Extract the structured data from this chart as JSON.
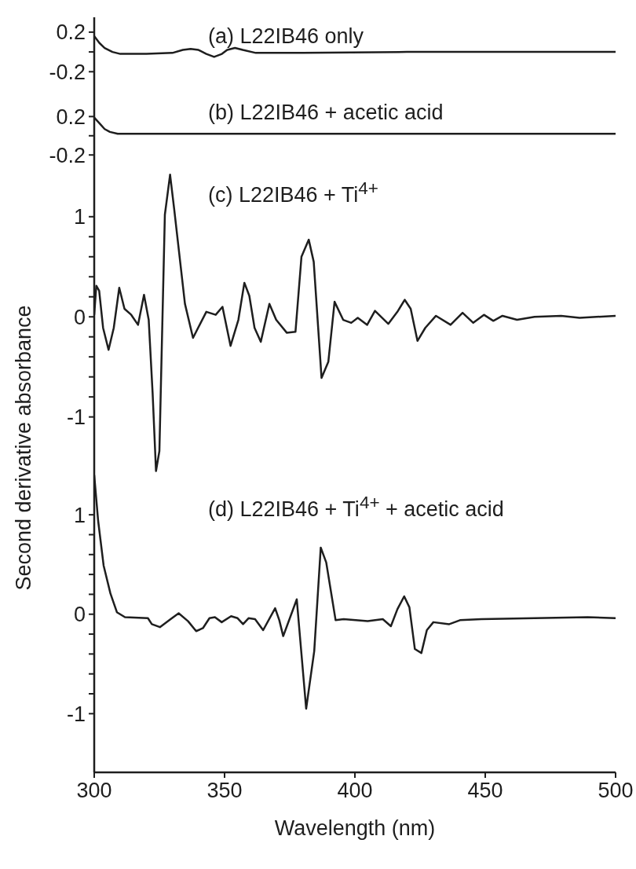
{
  "chart_data": [
    {
      "type": "line",
      "annotations": [
        "(a) L22IB46 only"
      ],
      "tick_labels": "y",
      "xlim": [
        300,
        500
      ],
      "xticks": [
        300,
        350,
        400,
        450,
        500
      ],
      "ylim": [
        -0.42,
        0.35
      ],
      "yticks": [
        -0.2,
        {
          "value": 0,
          "label": null
        },
        0.2
      ],
      "color": "#1e1e1e",
      "x": [
        300,
        302,
        304,
        307,
        310,
        320,
        330,
        334,
        337,
        340,
        343,
        346,
        349,
        351,
        354,
        357,
        362,
        380,
        420,
        460,
        500
      ],
      "values": [
        0.16,
        0.09,
        0.04,
        0.0,
        -0.02,
        -0.02,
        -0.01,
        0.02,
        0.03,
        0.02,
        -0.02,
        -0.05,
        -0.02,
        0.02,
        0.04,
        0.02,
        -0.01,
        -0.01,
        0.0,
        0.0,
        0.0
      ]
    },
    {
      "type": "line",
      "annotations": [
        "(b) L22IB46 + acetic acid"
      ],
      "tick_labels": "y",
      "xlim": [
        300,
        500
      ],
      "xticks": [
        300,
        350,
        400,
        450,
        500
      ],
      "ylim": [
        -0.28,
        0.44
      ],
      "yticks": [
        -0.2,
        {
          "value": 0,
          "label": null
        },
        0.2
      ],
      "color": "#1e1e1e",
      "x": [
        300,
        302,
        304,
        306,
        309,
        320,
        360,
        420,
        500
      ],
      "values": [
        0.19,
        0.13,
        0.07,
        0.04,
        0.02,
        0.02,
        0.02,
        0.02,
        0.02
      ]
    },
    {
      "type": "line",
      "annotations": [
        "(c) L22IB46 + Ti$^{4+}$"
      ],
      "ylabel": "Second derivative absorbance",
      "tick_labels": "y",
      "xlim": [
        300,
        500
      ],
      "xticks": [
        300,
        350,
        400,
        450,
        500
      ],
      "ylim": [
        -1.56,
        1.54
      ],
      "yticks": [
        -1,
        {
          "value": -0.8,
          "label": null
        },
        {
          "value": -0.6,
          "label": null
        },
        {
          "value": -0.4,
          "label": null
        },
        {
          "value": -0.2,
          "label": null
        },
        0,
        {
          "value": 0.2,
          "label": null
        },
        {
          "value": 0.4,
          "label": null
        },
        {
          "value": 0.6,
          "label": null
        },
        {
          "value": 0.8,
          "label": null
        },
        1
      ],
      "color": "#1e1e1e",
      "x": [
        300,
        300.8,
        301.9,
        303.4,
        305.5,
        307.5,
        309.6,
        311.6,
        314.2,
        316.8,
        319.1,
        320.9,
        322.4,
        323.7,
        325.0,
        327.1,
        329.1,
        330.7,
        334.8,
        337.9,
        343.0,
        346.6,
        349.2,
        352.3,
        355.3,
        357.6,
        359.5,
        361.5,
        363.9,
        367.2,
        369.8,
        373.9,
        377.2,
        379.5,
        382.3,
        384.2,
        387.2,
        389.8,
        392.2,
        395.5,
        398.6,
        401.1,
        404.7,
        407.7,
        412.8,
        416.3,
        419.1,
        421.4,
        424.0,
        427.0,
        431.1,
        436.7,
        441.3,
        445.4,
        449.5,
        453.1,
        456.6,
        462.2,
        468.9,
        479.1,
        486.2,
        500
      ],
      "values": [
        0.02,
        0.31,
        0.26,
        -0.11,
        -0.33,
        -0.11,
        0.29,
        0.08,
        0.02,
        -0.08,
        0.22,
        -0.03,
        -0.76,
        -1.54,
        -1.34,
        1.02,
        1.42,
        1.07,
        0.13,
        -0.21,
        0.05,
        0.02,
        0.1,
        -0.29,
        -0.03,
        0.34,
        0.21,
        -0.11,
        -0.25,
        0.13,
        -0.03,
        -0.16,
        -0.15,
        0.6,
        0.77,
        0.55,
        -0.61,
        -0.45,
        0.15,
        -0.03,
        -0.06,
        -0.01,
        -0.08,
        0.06,
        -0.07,
        0.05,
        0.17,
        0.08,
        -0.24,
        -0.11,
        0.01,
        -0.08,
        0.04,
        -0.06,
        0.02,
        -0.04,
        0.01,
        -0.03,
        0.0,
        0.01,
        -0.01,
        0.01
      ]
    },
    {
      "type": "line",
      "annotations": [
        "(d) L22IB46 + Ti$^{4+}$ + acetic acid"
      ],
      "xlabel": "Wavelength (nm)",
      "xlim": [
        300,
        500
      ],
      "xticks": [
        300,
        350,
        400,
        450,
        500
      ],
      "ylim": [
        -1.59,
        1.42
      ],
      "yticks": [
        -1,
        {
          "value": -0.8,
          "label": null
        },
        {
          "value": -0.6,
          "label": null
        },
        {
          "value": -0.4,
          "label": null
        },
        {
          "value": -0.2,
          "label": null
        },
        0,
        {
          "value": 0.2,
          "label": null
        },
        {
          "value": 0.4,
          "label": null
        },
        {
          "value": 0.6,
          "label": null
        },
        {
          "value": 0.8,
          "label": null
        },
        1
      ],
      "color": "#1e1e1e",
      "x": [
        300,
        301.5,
        303.6,
        306.2,
        308.7,
        311.8,
        320.6,
        322.1,
        325.2,
        329.3,
        332.4,
        336.0,
        339.1,
        341.7,
        344.2,
        346.3,
        348.9,
        352.5,
        355.0,
        357.1,
        359.2,
        361.7,
        364.8,
        369.4,
        371.0,
        372.5,
        377.7,
        381.3,
        384.4,
        386.9,
        389.0,
        392.6,
        395.7,
        404.9,
        410.7,
        413.8,
        416.3,
        418.9,
        420.9,
        423.0,
        425.5,
        427.6,
        430.1,
        436.2,
        440.3,
        448.5,
        468.9,
        489.3,
        500
      ],
      "values": [
        1.4,
        0.94,
        0.49,
        0.21,
        0.02,
        -0.03,
        -0.04,
        -0.1,
        -0.13,
        -0.05,
        0.01,
        -0.07,
        -0.17,
        -0.14,
        -0.04,
        -0.03,
        -0.08,
        -0.02,
        -0.04,
        -0.1,
        -0.04,
        -0.05,
        -0.16,
        0.06,
        -0.06,
        -0.22,
        0.15,
        -0.95,
        -0.37,
        0.67,
        0.52,
        -0.06,
        -0.05,
        -0.07,
        -0.05,
        -0.12,
        0.05,
        0.18,
        0.07,
        -0.35,
        -0.39,
        -0.16,
        -0.08,
        -0.1,
        -0.06,
        -0.05,
        -0.04,
        -0.03,
        -0.04
      ]
    }
  ]
}
